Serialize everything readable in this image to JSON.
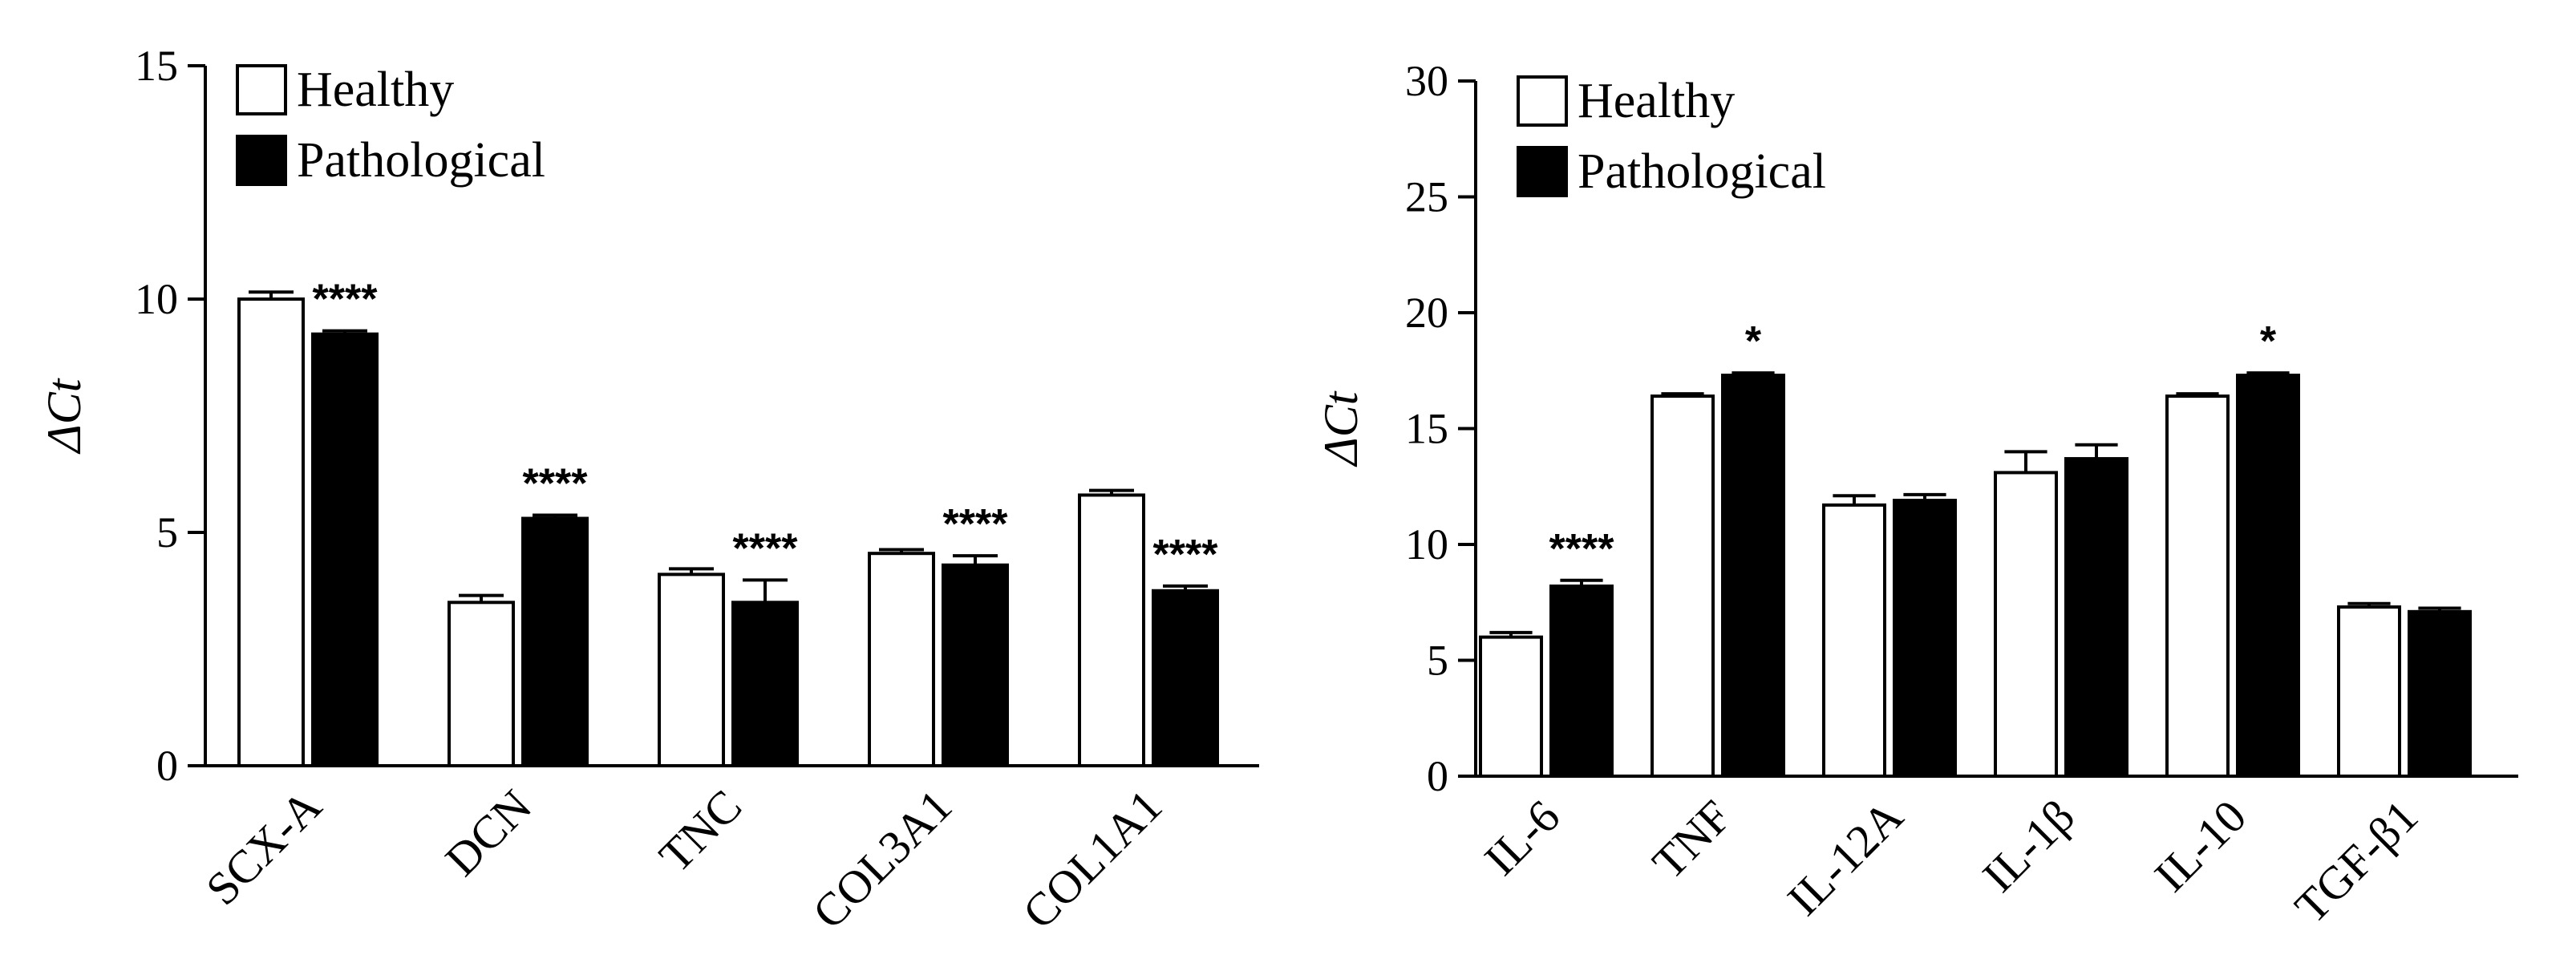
{
  "chart_data": [
    {
      "type": "bar",
      "title": "",
      "xlabel": "",
      "ylabel": "ΔCt",
      "ylim": [
        0,
        15
      ],
      "yticks": [
        0,
        5,
        10,
        15
      ],
      "categories": [
        "SCX-A",
        "DCN",
        "TNC",
        "COL3A1",
        "COL1A1"
      ],
      "series": [
        {
          "name": "Healthy",
          "color": "#ffffff",
          "values": [
            10.0,
            3.5,
            4.1,
            4.55,
            5.8
          ],
          "errors": [
            0.15,
            0.15,
            0.12,
            0.08,
            0.1
          ]
        },
        {
          "name": "Pathological",
          "color": "#000000",
          "values": [
            9.25,
            5.3,
            3.5,
            4.3,
            3.75
          ],
          "errors": [
            0.07,
            0.07,
            0.48,
            0.2,
            0.1
          ]
        }
      ],
      "significance": [
        "****",
        "****",
        "****",
        "****",
        "****"
      ],
      "legend": {
        "position": "top-left",
        "labels": [
          "Healthy",
          "Pathological"
        ]
      }
    },
    {
      "type": "bar",
      "title": "",
      "xlabel": "",
      "ylabel": "ΔCt",
      "ylim": [
        0,
        30
      ],
      "yticks": [
        0,
        5,
        10,
        15,
        20,
        25,
        30
      ],
      "categories": [
        "IL-6",
        "TNF",
        "IL-12A",
        "IL-1β",
        "IL-10",
        "TGF-β1"
      ],
      "series": [
        {
          "name": "Healthy",
          "color": "#ffffff",
          "values": [
            6.0,
            16.4,
            11.7,
            13.1,
            16.4,
            7.3
          ],
          "errors": [
            0.2,
            0.1,
            0.4,
            0.9,
            0.1,
            0.15
          ]
        },
        {
          "name": "Pathological",
          "color": "#000000",
          "values": [
            8.2,
            17.3,
            11.9,
            13.7,
            17.3,
            7.1
          ],
          "errors": [
            0.25,
            0.1,
            0.25,
            0.6,
            0.1,
            0.15
          ]
        }
      ],
      "significance": [
        "****",
        "*",
        "",
        "",
        "*",
        ""
      ],
      "legend": {
        "position": "top-left",
        "labels": [
          "Healthy",
          "Pathological"
        ]
      }
    }
  ]
}
